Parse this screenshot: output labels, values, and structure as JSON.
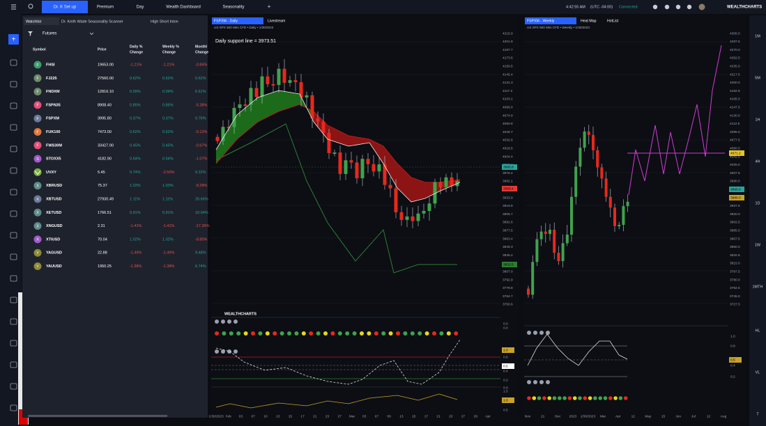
{
  "nav": {
    "tabs": [
      "Dr. K Set up",
      "Premium",
      "Day",
      "Wealth Dashboard",
      "Seasonality"
    ],
    "active_tab": 0,
    "time": "4:42:55 AM",
    "timezone": "(UTC -04:00)",
    "status": "Connected",
    "brand": "WEALTHCHARTS"
  },
  "watchlist": {
    "tabs": [
      "Watchlist",
      "Dr. Keith Wade Seasonality Scanner",
      "High Short Inton"
    ],
    "list": "Futures",
    "columns": [
      [
        "Symbol"
      ],
      [
        "Price"
      ],
      [
        "Daily %",
        "Change"
      ],
      [
        "Weekly %",
        "Change"
      ],
      [
        "Monthl",
        "Change"
      ]
    ],
    "rows": [
      {
        "icon": "F",
        "icon_color": "#3f9c6e",
        "symbol": "FHSI",
        "price": "19653.00",
        "daily": "-1.21%",
        "weekly": "-1.21%",
        "monthly": "-0.84%"
      },
      {
        "icon": "F",
        "icon_color": "#6f8a6a",
        "symbol": "FJ225",
        "price": "27560.00",
        "daily": "0.62%",
        "weekly": "0.62%",
        "monthly": "0.62%"
      },
      {
        "icon": "F",
        "icon_color": "#6f8a6a",
        "symbol": "FNDXM",
        "price": "12816.10",
        "daily": "0.09%",
        "weekly": "0.09%",
        "monthly": "6.61%"
      },
      {
        "icon": "F",
        "icon_color": "#e0507a",
        "symbol": "FSPN35",
        "price": "8908.40",
        "daily": "0.85%",
        "weekly": "0.85%",
        "monthly": "-5.38%"
      },
      {
        "icon": "F",
        "icon_color": "#6b7a99",
        "symbol": "FSPXM",
        "price": "3995.80",
        "daily": "0.37%",
        "weekly": "0.37%",
        "monthly": "0.76%"
      },
      {
        "icon": "F",
        "icon_color": "#e0783a",
        "symbol": "FUK100",
        "price": "7473.00",
        "daily": "0.62%",
        "weekly": "0.62%",
        "monthly": "-5.12%"
      },
      {
        "icon": "F",
        "icon_color": "#e0507a",
        "symbol": "FWS30M",
        "price": "33427.00",
        "daily": "0.45%",
        "weekly": "0.45%",
        "monthly": "-0.67%"
      },
      {
        "icon": "S",
        "icon_color": "#a05ac8",
        "symbol": "STOXX5",
        "price": "4182.90",
        "daily": "0.54%",
        "weekly": "0.54%",
        "monthly": "-1.07%"
      },
      {
        "icon_color": "#7cb342",
        "symbol": "UVXY",
        "price": "5.45",
        "daily": "0.74%",
        "weekly": "-2.50%",
        "monthly": "9.22%"
      },
      {
        "icon": "X",
        "icon_color": "#5f8a8b",
        "symbol": "XBRUSD",
        "price": "75.37",
        "daily": "1.03%",
        "weekly": "1.03%",
        "monthly": "-9.28%"
      },
      {
        "icon": "X",
        "icon_color": "#6b7a99",
        "symbol": "XBTUSD",
        "price": "27930.49",
        "daily": "1.11%",
        "weekly": "1.11%",
        "monthly": "20.66%"
      },
      {
        "icon": "X",
        "icon_color": "#5f8a8b",
        "symbol": "XETUSD",
        "price": "1766.51",
        "daily": "0.91%",
        "weekly": "0.91%",
        "monthly": "10.04%"
      },
      {
        "icon": "X",
        "icon_color": "#5f8a8b",
        "symbol": "XNGUSD",
        "price": "2.31",
        "daily": "-1.41%",
        "weekly": "-1.41%",
        "monthly": "-17.39%"
      },
      {
        "icon": "X",
        "icon_color": "#a05ac8",
        "symbol": "XTIUSD",
        "price": "70.04",
        "daily": "1.02%",
        "weekly": "1.02%",
        "monthly": "-8.80%"
      },
      {
        "icon": "Y",
        "icon_color": "#8d8a3a",
        "symbol": "YAGUSD",
        "price": "22.88",
        "daily": "-1.49%",
        "weekly": "-1.49%",
        "monthly": "9.48%"
      },
      {
        "icon": "Y",
        "icon_color": "#8d8a3a",
        "symbol": "YAUUSD",
        "price": "1950.25",
        "daily": "-1.38%",
        "weekly": "-1.38%",
        "monthly": "6.74%"
      }
    ]
  },
  "charts": [
    {
      "tabs": [
        "FSPXM - Daily",
        "Livestream"
      ],
      "info": "US SPX 500 Mini CFD • Daily • 1/30/2023",
      "annotation": "Daily support line = 3973.51",
      "watermark": "WEALTHCHARTS",
      "price_labels": [
        "4215.9",
        "4201.8",
        "4187.7",
        "4173.6",
        "4159.5",
        "4145.4",
        "4131.3",
        "4117.2",
        "4103.1",
        "4089.0",
        "4074.9",
        "4060.8",
        "4046.7",
        "4032.6",
        "4018.5",
        "4004.4",
        "3990.3",
        "3976.2",
        "3962.1",
        "3948.0",
        "3933.9",
        "3919.8",
        "3905.7",
        "3891.6",
        "3877.5",
        "3863.4",
        "3849.3",
        "3835.2",
        "3821.1",
        "3807.0",
        "3792.9",
        "3778.8",
        "3764.7",
        "3750.6"
      ],
      "tags": [
        {
          "label": "3995.8",
          "color": "#26a69a"
        },
        {
          "label": "3958.4",
          "color": "#e53935"
        },
        {
          "label": "3832.5",
          "color": "#2e7d32"
        }
      ],
      "indicator_labels": [
        "0.0",
        "0.0",
        "1.0",
        "0.8",
        "0.5",
        "0.4",
        "0.2",
        "0.0",
        "1.5",
        "1.0",
        "0.5"
      ],
      "dates": [
        "1/30/2023",
        "Feb",
        "03",
        "07",
        "10",
        "13",
        "15",
        "17",
        "21",
        "23",
        "27",
        "Mar",
        "03",
        "07",
        "09",
        "13",
        "15",
        "17",
        "21",
        "23",
        "27",
        "29",
        "Apr"
      ]
    },
    {
      "tabs": [
        "FSPXM - Weekly",
        "Heat Map",
        "HotList"
      ],
      "info": "US SPX 500 Mini CFD • Weekly • 1/30/2023",
      "price_labels": [
        "4305.0",
        "4287.5",
        "4270.0",
        "4252.5",
        "4235.0",
        "4217.5",
        "4200.0",
        "4182.5",
        "4165.0",
        "4147.5",
        "4130.0",
        "4112.5",
        "4095.0",
        "4077.5",
        "4060.0",
        "4042.5",
        "4025.0",
        "4007.5",
        "3990.0",
        "3972.5",
        "3955.0",
        "3937.5",
        "3920.0",
        "3902.5",
        "3885.0",
        "3867.5",
        "3850.0",
        "3832.5",
        "3815.0",
        "3797.5",
        "3780.0",
        "3762.5",
        "3745.0",
        "3727.5"
      ],
      "tags": [
        {
          "label": "4071.2",
          "color": "#e6c229"
        },
        {
          "label": "3995.8",
          "color": "#26a69a"
        },
        {
          "label": "3980.0",
          "color": "#c9a227"
        }
      ],
      "indicator_labels": [
        "1.0",
        "0.8",
        "0.5",
        "0.4",
        "0.2"
      ],
      "dates": [
        "Nov",
        "21",
        "Dec",
        "2023",
        "1/30/2023",
        "Mar",
        "Apr",
        "12",
        "May",
        "15",
        "Jun",
        "Jul",
        "12",
        "Aug"
      ]
    }
  ],
  "timeframes": [
    "1M",
    "5M",
    "1H",
    "4H",
    "1D",
    "1W",
    "1MTH",
    "HL",
    "VL",
    "T"
  ]
}
